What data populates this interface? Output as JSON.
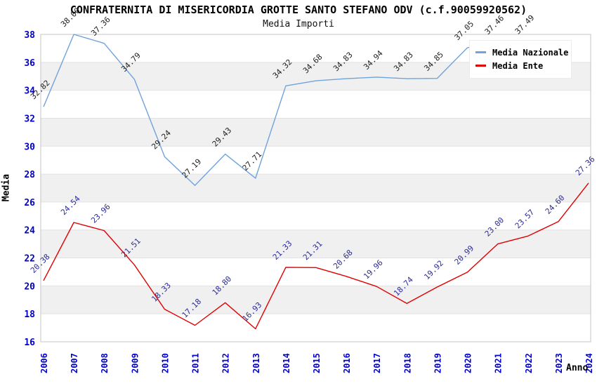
{
  "title": "CONFRATERNITA DI MISERICORDIA GROTTE SANTO STEFANO ODV (c.f.90059920562)",
  "subtitle": "Media Importi",
  "legend": {
    "items": [
      {
        "label": "Media Nazionale",
        "color": "#6FA3DC"
      },
      {
        "label": "Media Ente",
        "color": "#E00000"
      }
    ]
  },
  "axis": {
    "ylabel": "Media",
    "xlabel": "Anno",
    "tick_color": "#0000CC",
    "band_color": "#F0F0F0",
    "grid_line_color": "#E2E2E2",
    "border_color": "#C6C6C6"
  },
  "chart_data": {
    "type": "line",
    "title": "CONFRATERNITA DI MISERICORDIA GROTTE SANTO STEFANO ODV (c.f.90059920562)",
    "subtitle": "Media Importi",
    "xlabel": "Anno",
    "ylabel": "Media",
    "x": [
      2006,
      2007,
      2008,
      2009,
      2010,
      2011,
      2012,
      2013,
      2014,
      2015,
      2016,
      2017,
      2018,
      2019,
      2020,
      2021,
      2022,
      2023,
      2024
    ],
    "series": [
      {
        "name": "Media Nazionale",
        "color": "#6FA3DC",
        "label_color": "#222222",
        "values": [
          32.82,
          38.0,
          37.36,
          34.79,
          29.24,
          27.19,
          29.43,
          27.71,
          34.32,
          34.68,
          34.83,
          34.94,
          34.83,
          34.85,
          37.05,
          37.46,
          37.49,
          null,
          null
        ]
      },
      {
        "name": "Media Ente",
        "color": "#E00000",
        "label_color": "#2B2B99",
        "values": [
          20.38,
          24.54,
          23.96,
          21.51,
          18.33,
          17.18,
          18.8,
          16.93,
          21.33,
          21.31,
          20.68,
          19.96,
          18.74,
          19.92,
          20.99,
          23.0,
          23.57,
          24.6,
          27.36
        ]
      }
    ],
    "ylim": [
      16,
      38
    ],
    "ytick_step": 2,
    "grid": "horizontal-bands",
    "legend_position": "top-right"
  }
}
